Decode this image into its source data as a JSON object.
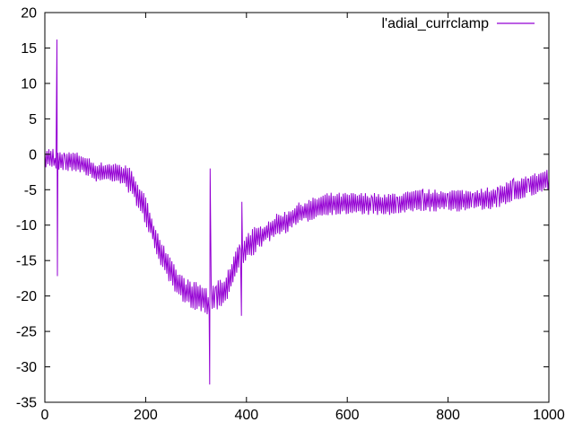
{
  "chart_data": {
    "type": "line",
    "title": "",
    "xlabel": "",
    "ylabel": "",
    "xlim": [
      0,
      1000
    ],
    "ylim": [
      -35,
      20
    ],
    "xticks": [
      0,
      200,
      400,
      600,
      800,
      1000
    ],
    "yticks": [
      20,
      15,
      10,
      5,
      0,
      -5,
      -10,
      -15,
      -20,
      -25,
      -30,
      -35
    ],
    "grid": false,
    "legend_position": "top-right",
    "series": [
      {
        "name": "l'adial_currclamp",
        "color": "#9400d3",
        "points": [
          [
            0,
            -0.5
          ],
          [
            20,
            -0.5
          ],
          [
            22,
            -2
          ],
          [
            24,
            16.2
          ],
          [
            25,
            -17.2
          ],
          [
            26,
            -1
          ],
          [
            40,
            -1
          ],
          [
            60,
            -1
          ],
          [
            80,
            -1.5
          ],
          [
            100,
            -2.5
          ],
          [
            120,
            -2.5
          ],
          [
            140,
            -2.5
          ],
          [
            160,
            -3
          ],
          [
            180,
            -5
          ],
          [
            200,
            -8
          ],
          [
            220,
            -12
          ],
          [
            240,
            -15.5
          ],
          [
            260,
            -18
          ],
          [
            280,
            -19.5
          ],
          [
            300,
            -20
          ],
          [
            320,
            -20.5
          ],
          [
            326,
            -22.5
          ],
          [
            327,
            -32.5
          ],
          [
            328,
            -2
          ],
          [
            330,
            -20.5
          ],
          [
            340,
            -20
          ],
          [
            360,
            -19
          ],
          [
            375,
            -16
          ],
          [
            388,
            -13.5
          ],
          [
            390,
            -22.8
          ],
          [
            391,
            -6.7
          ],
          [
            392,
            -14
          ],
          [
            400,
            -13
          ],
          [
            420,
            -12
          ],
          [
            440,
            -11
          ],
          [
            460,
            -10
          ],
          [
            480,
            -9.5
          ],
          [
            500,
            -8.5
          ],
          [
            520,
            -8
          ],
          [
            540,
            -7.5
          ],
          [
            560,
            -7
          ],
          [
            600,
            -7
          ],
          [
            650,
            -7
          ],
          [
            700,
            -7
          ],
          [
            750,
            -6.5
          ],
          [
            800,
            -6.5
          ],
          [
            850,
            -6.5
          ],
          [
            900,
            -6
          ],
          [
            930,
            -5
          ],
          [
            960,
            -4.5
          ],
          [
            1000,
            -3.5
          ]
        ]
      }
    ]
  }
}
